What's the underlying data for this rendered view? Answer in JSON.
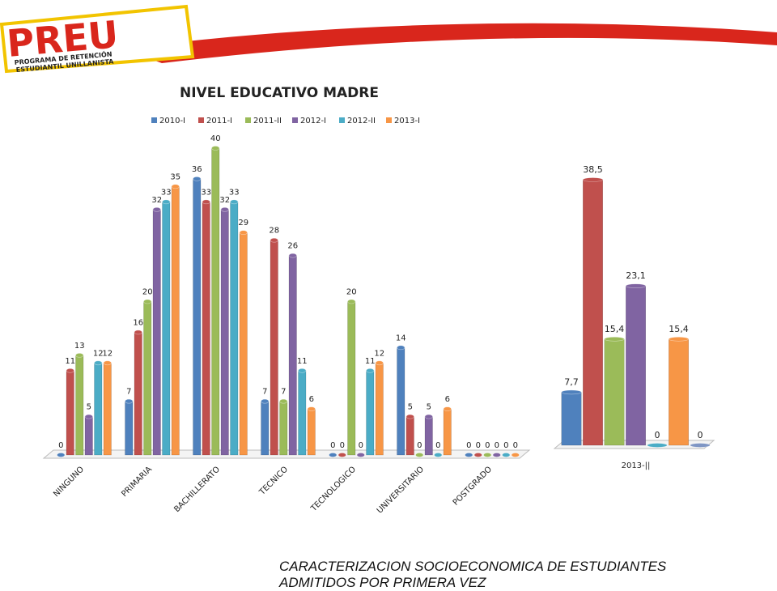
{
  "header": {
    "logo": "PREU",
    "subtitle_lines": [
      "PROGRAMA DE RETENCIÓN",
      "ESTUDIANTIL UNILLANISTA"
    ]
  },
  "chart_data": [
    {
      "type": "bar",
      "title": "NIVEL EDUCATIVO MADRE",
      "categories": [
        "NINGUNO",
        "PRIMARIA",
        "BACHILLERATO",
        "TECNICO",
        "TECNOLOGICO",
        "UNIVERSITARIO",
        "POSTGRADO"
      ],
      "series": [
        {
          "name": "2010-I",
          "color": "#4f81bd",
          "values": [
            0,
            7,
            36,
            7,
            0,
            14,
            0
          ]
        },
        {
          "name": "2011-I",
          "color": "#c0504d",
          "values": [
            11,
            16,
            33,
            28,
            0,
            5,
            0
          ]
        },
        {
          "name": "2011-II",
          "color": "#9bbb59",
          "values": [
            13,
            20,
            40,
            7,
            20,
            0,
            0
          ]
        },
        {
          "name": "2012-I",
          "color": "#8064a2",
          "values": [
            5,
            32,
            32,
            26,
            0,
            5,
            0
          ]
        },
        {
          "name": "2012-II",
          "color": "#4bacc6",
          "values": [
            12,
            33,
            33,
            11,
            11,
            0,
            0
          ]
        },
        {
          "name": "2013-I",
          "color": "#f79646",
          "values": [
            12,
            35,
            29,
            6,
            12,
            6,
            0
          ]
        }
      ],
      "legend": "top"
    },
    {
      "type": "bar",
      "categories": [
        "2013-||"
      ],
      "series": [
        {
          "color": "#4f81bd",
          "values": [
            7.7
          ],
          "value_labels": [
            "7,7"
          ]
        },
        {
          "color": "#c0504d",
          "values": [
            38.5
          ],
          "value_labels": [
            "38,5"
          ]
        },
        {
          "color": "#9bbb59",
          "values": [
            15.4
          ],
          "value_labels": [
            "15,4"
          ]
        },
        {
          "color": "#8064a2",
          "values": [
            23.1
          ],
          "value_labels": [
            "23,1"
          ]
        },
        {
          "color": "#4bacc6",
          "values": [
            0
          ],
          "value_labels": [
            "0"
          ]
        },
        {
          "color": "#f79646",
          "values": [
            15.4
          ],
          "value_labels": [
            "15,4"
          ]
        },
        {
          "color": "#7f96c4",
          "values": [
            0
          ],
          "value_labels": [
            "0"
          ]
        }
      ]
    }
  ],
  "footer": {
    "lines": [
      "CARACTERIZACION SOCIOECONOMICA DE ESTUDIANTES",
      "ADMITIDOS POR PRIMERA VEZ"
    ]
  }
}
